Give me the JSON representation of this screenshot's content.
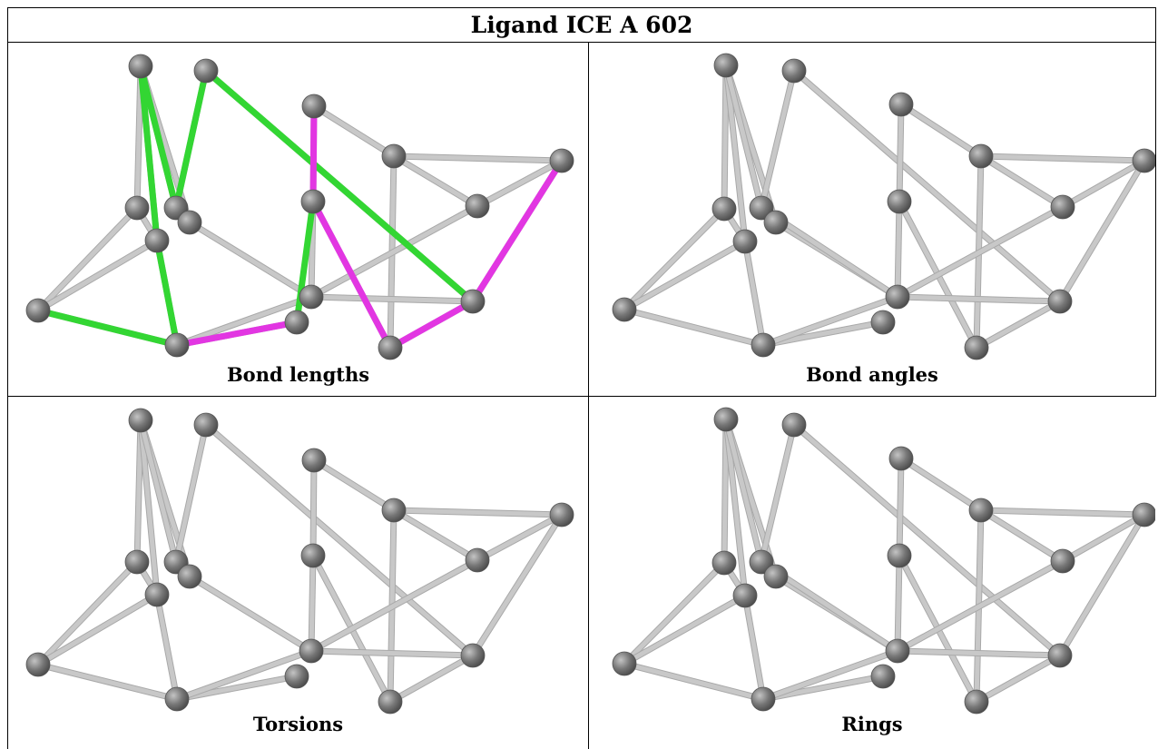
{
  "title": "Ligand ICE A 602",
  "panels": [
    {
      "caption": "Bond lengths",
      "highlight": true
    },
    {
      "caption": "Bond angles",
      "highlight": false
    },
    {
      "caption": "Torsions",
      "highlight": false
    },
    {
      "caption": "Rings",
      "highlight": false
    }
  ],
  "colors": {
    "bond": "#c8c8c8",
    "atom": "#777777",
    "highlight_green": "#33d633",
    "highlight_magenta": "#e236e2"
  }
}
